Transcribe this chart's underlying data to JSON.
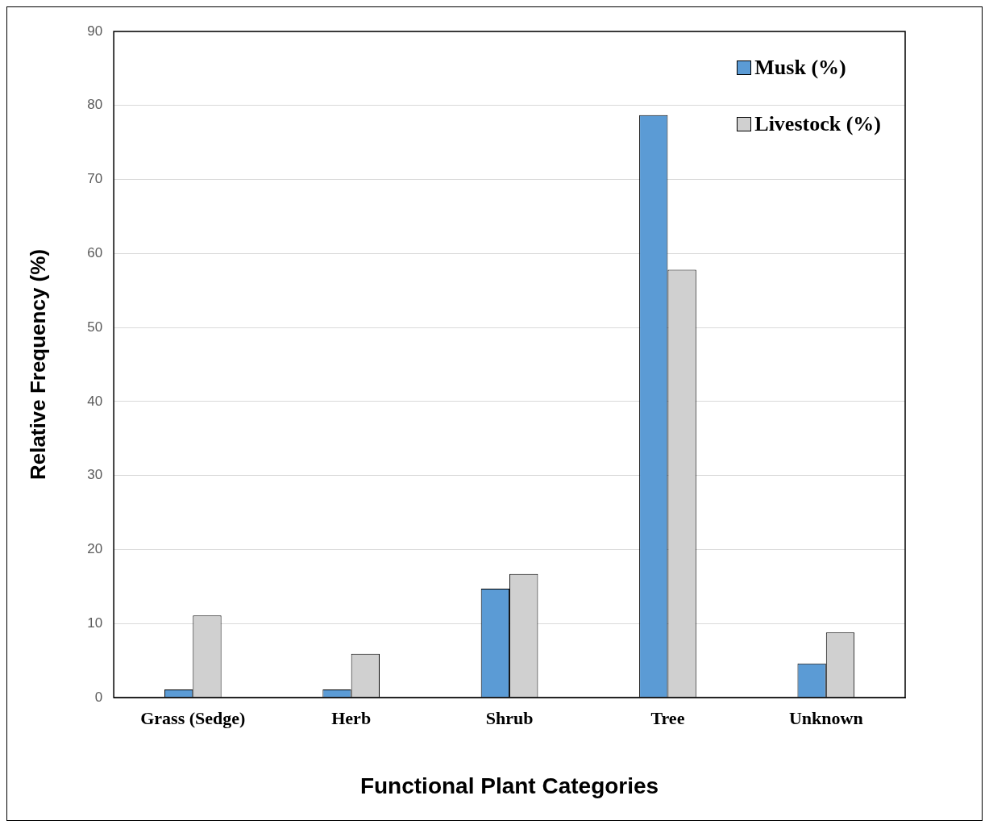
{
  "chart_data": {
    "type": "bar",
    "xlabel": "Functional Plant Categories",
    "ylabel": "Relative Frequency (%)",
    "categories": [
      "Grass (Sedge)",
      "Herb",
      "Shrub",
      "Tree",
      "Unknown"
    ],
    "series": [
      {
        "name": "Musk (%)",
        "color": "#5b9bd5",
        "values": [
          1.1,
          1.1,
          14.7,
          78.7,
          4.6
        ]
      },
      {
        "name": "Livestock (%)",
        "color": "#d0d0d0",
        "values": [
          11.1,
          5.9,
          16.7,
          57.8,
          8.8
        ]
      }
    ],
    "ylim": [
      0,
      90
    ],
    "yticks": [
      0,
      10,
      20,
      30,
      40,
      50,
      60,
      70,
      80,
      90
    ],
    "grid": "y",
    "legend": "top right"
  }
}
